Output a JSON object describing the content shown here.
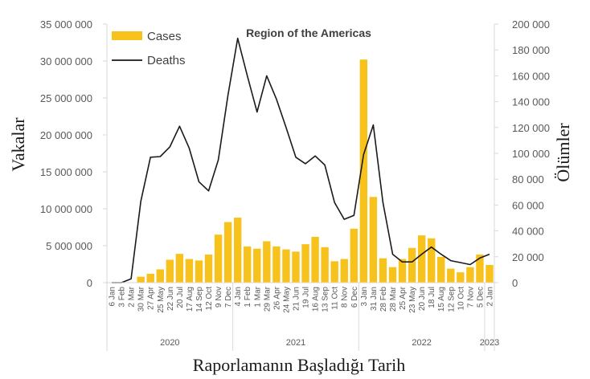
{
  "chart_data": {
    "type": "bar+line",
    "title": "Region of the Americas",
    "xlabel": "Raporlamanın Başladığı Tarih",
    "ylabel": "Vakalar",
    "y2label": "Ölümler",
    "ylim": [
      0,
      35000000
    ],
    "y2lim": [
      0,
      200000
    ],
    "yticks": [
      "0",
      "5 000 000",
      "10 000 000",
      "15 000 000",
      "20 000 000",
      "25 000 000",
      "30 000 000",
      "35 000 000"
    ],
    "y2ticks": [
      "0",
      "20 000",
      "40 000",
      "60 000",
      "80 000",
      "100 000",
      "120 000",
      "140 000",
      "160 000",
      "180 000",
      "200 000"
    ],
    "legend": {
      "position": "top-left",
      "entries": [
        "Cases",
        "Deaths"
      ]
    },
    "colors": {
      "cases": "#F8C21C",
      "deaths": "#1a1a1a",
      "grid": "#d9d9d9"
    },
    "categories": [
      "6 Jan",
      "3 Feb",
      "2 Mar",
      "30 Mar",
      "27 Apr",
      "25 May",
      "22 Jun",
      "20 Jul",
      "17 Aug",
      "14 Sep",
      "12 Oct",
      "9 Nov",
      "7 Dec",
      "4 Jan",
      "1 Feb",
      "1 Mar",
      "29 Mar",
      "26 Apr",
      "24 May",
      "21 Jun",
      "19 Jul",
      "16 Aug",
      "13 Sep",
      "11 Oct",
      "8 Nov",
      "6 Dec",
      "3 Jan",
      "31 Jan",
      "28 Feb",
      "28 Mar",
      "25 Apr",
      "23 May",
      "20 Jun",
      "18 Jul",
      "15 Aug",
      "12 Sep",
      "10 Oct",
      "7 Nov",
      "5 Dec",
      "2 Jan"
    ],
    "years": [
      {
        "label": "2020",
        "count": 13
      },
      {
        "label": "2021",
        "count": 13
      },
      {
        "label": "2022",
        "count": 13
      },
      {
        "label": "2023",
        "count": 1
      }
    ],
    "series": [
      {
        "name": "Cases",
        "type": "bar",
        "axis": "left",
        "values": [
          0,
          0,
          0,
          800000,
          1200000,
          1800000,
          3100000,
          3900000,
          3200000,
          3000000,
          3800000,
          6500000,
          8200000,
          8800000,
          4900000,
          4600000,
          5600000,
          4900000,
          4500000,
          4200000,
          5200000,
          6200000,
          4800000,
          2900000,
          3200000,
          7300000,
          30200000,
          11600000,
          3300000,
          2100000,
          3200000,
          4700000,
          6400000,
          6000000,
          3500000,
          1900000,
          1400000,
          2100000,
          3800000,
          2400000
        ]
      },
      {
        "name": "Deaths",
        "type": "line",
        "axis": "right",
        "values": [
          0,
          0,
          3000,
          63000,
          97000,
          97500,
          105000,
          121000,
          104000,
          78000,
          71000,
          95000,
          145000,
          189000,
          160000,
          132000,
          160000,
          142000,
          120000,
          97000,
          92000,
          98000,
          91000,
          62000,
          49000,
          52000,
          99000,
          122000,
          62000,
          22000,
          16000,
          16000,
          22000,
          27500,
          22000,
          17000,
          15500,
          14000,
          19000,
          22000
        ]
      }
    ]
  }
}
